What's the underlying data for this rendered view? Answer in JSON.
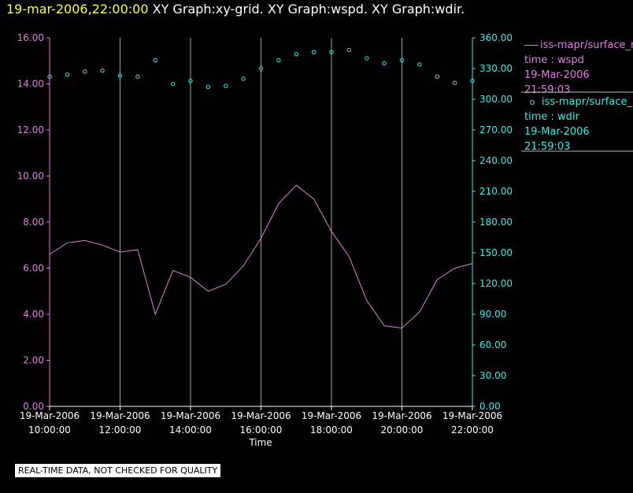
{
  "header": {
    "time": "19-mar-2006,22:00:00",
    "title": "XY Graph:xy-grid.  XY Graph:wspd.  XY Graph:wdir."
  },
  "colors": {
    "wspd": "#e080e0",
    "wdir": "#40e8e8",
    "grid": "#a0a0a0",
    "axis": "#ffffff",
    "background": "#000000"
  },
  "legend": {
    "wspd": {
      "series": "iss-mapr/surface_m",
      "var": "time : wspd",
      "date": "19-Mar-2006",
      "time": "21:59:03"
    },
    "wdir": {
      "series": "iss-mapr/surface_m",
      "var": "time : wdir",
      "date": "19-Mar-2006",
      "time": "21:59:03"
    }
  },
  "disclaimer": "REAL-TIME DATA, NOT CHECKED FOR QUALITY",
  "chart_data": {
    "type": "line",
    "xlabel": "Time",
    "x_ticks": [
      {
        "date": "19-Mar-2006",
        "time": "10:00:00",
        "hour": 10
      },
      {
        "date": "19-Mar-2006",
        "time": "12:00:00",
        "hour": 12
      },
      {
        "date": "19-Mar-2006",
        "time": "14:00:00",
        "hour": 14
      },
      {
        "date": "19-Mar-2006",
        "time": "16:00:00",
        "hour": 16
      },
      {
        "date": "19-Mar-2006",
        "time": "18:00:00",
        "hour": 18
      },
      {
        "date": "19-Mar-2006",
        "time": "20:00:00",
        "hour": 20
      },
      {
        "date": "19-Mar-2006",
        "time": "22:00:00",
        "hour": 22
      }
    ],
    "xlim": [
      10,
      22
    ],
    "left_axis": {
      "ylim": [
        0,
        16
      ],
      "ticks": [
        "0.00",
        "2.00",
        "4.00",
        "6.00",
        "8.00",
        "10.00",
        "12.00",
        "14.00",
        "16.00"
      ]
    },
    "right_axis": {
      "ylim": [
        0,
        360
      ],
      "ticks": [
        "0.00",
        "30.00",
        "60.00",
        "90.00",
        "120.00",
        "150.00",
        "180.00",
        "210.00",
        "240.00",
        "270.00",
        "300.00",
        "330.00",
        "360.00"
      ]
    },
    "grid": "vertical",
    "series": [
      {
        "name": "time : wspd",
        "type": "line",
        "axis": "left",
        "x": [
          10,
          10.5,
          11,
          11.5,
          12,
          12.5,
          13,
          13.5,
          14,
          14.5,
          15,
          15.5,
          16,
          16.5,
          17,
          17.5,
          18,
          18.5,
          19,
          19.5,
          20,
          20.5,
          21,
          21.5,
          22
        ],
        "y": [
          6.6,
          7.1,
          7.2,
          7.0,
          6.7,
          6.8,
          4.0,
          5.9,
          5.6,
          5.0,
          5.3,
          6.1,
          7.3,
          8.8,
          9.6,
          9.0,
          7.6,
          6.5,
          4.6,
          3.5,
          3.4,
          4.1,
          5.5,
          6.0,
          6.2
        ]
      },
      {
        "name": "time : wdir",
        "type": "scatter",
        "axis": "right",
        "x": [
          10,
          10.5,
          11,
          11.5,
          12,
          12.5,
          13,
          13.5,
          14,
          14.5,
          15,
          15.5,
          16,
          16.5,
          17,
          17.5,
          18,
          18.5,
          19,
          19.5,
          20,
          20.5,
          21,
          21.5,
          22
        ],
        "y": [
          322,
          324,
          327,
          328,
          323,
          322,
          338,
          315,
          318,
          312,
          313,
          320,
          330,
          338,
          344,
          346,
          346,
          348,
          340,
          335,
          338,
          334,
          322,
          316,
          318
        ]
      }
    ]
  }
}
